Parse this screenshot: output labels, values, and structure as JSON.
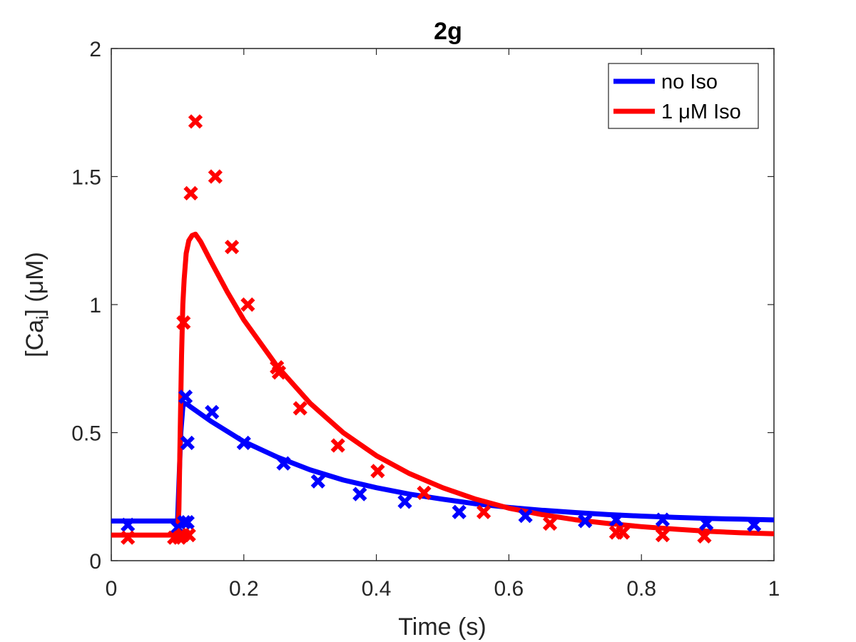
{
  "chart_data": {
    "type": "line",
    "title": "2g",
    "xlabel": "Time (s)",
    "ylabel_prefix": "[Ca",
    "ylabel_sub": "i",
    "ylabel_suffix": "] (μM)",
    "xlim": [
      0,
      1
    ],
    "ylim": [
      0,
      2
    ],
    "xticks": [
      "0",
      "0.2",
      "0.4",
      "0.6",
      "0.8",
      "1"
    ],
    "xtick_values": [
      0,
      0.2,
      0.4,
      0.6,
      0.8,
      1
    ],
    "yticks": [
      "0",
      "0.5",
      "1",
      "1.5",
      "2"
    ],
    "ytick_values": [
      0,
      0.5,
      1,
      1.5,
      2
    ],
    "grid": false,
    "legend_position": "top-right",
    "series": [
      {
        "name": "no Iso",
        "color": "#0000ff",
        "fit": [
          [
            0,
            0.155
          ],
          [
            0.02,
            0.155
          ],
          [
            0.04,
            0.155
          ],
          [
            0.06,
            0.155
          ],
          [
            0.08,
            0.155
          ],
          [
            0.1,
            0.155
          ],
          [
            0.102,
            0.3
          ],
          [
            0.105,
            0.5
          ],
          [
            0.108,
            0.6
          ],
          [
            0.11,
            0.615
          ],
          [
            0.115,
            0.61
          ],
          [
            0.12,
            0.6
          ],
          [
            0.15,
            0.545
          ],
          [
            0.2,
            0.465
          ],
          [
            0.25,
            0.405
          ],
          [
            0.3,
            0.355
          ],
          [
            0.35,
            0.315
          ],
          [
            0.4,
            0.285
          ],
          [
            0.45,
            0.26
          ],
          [
            0.5,
            0.24
          ],
          [
            0.55,
            0.222
          ],
          [
            0.6,
            0.208
          ],
          [
            0.65,
            0.197
          ],
          [
            0.7,
            0.188
          ],
          [
            0.75,
            0.18
          ],
          [
            0.8,
            0.174
          ],
          [
            0.85,
            0.169
          ],
          [
            0.9,
            0.165
          ],
          [
            0.95,
            0.162
          ],
          [
            1.0,
            0.159
          ]
        ],
        "points": [
          [
            0.025,
            0.14
          ],
          [
            0.1,
            0.13
          ],
          [
            0.11,
            0.15
          ],
          [
            0.115,
            0.15
          ],
          [
            0.112,
            0.64
          ],
          [
            0.115,
            0.46
          ],
          [
            0.152,
            0.58
          ],
          [
            0.2,
            0.46
          ],
          [
            0.26,
            0.38
          ],
          [
            0.312,
            0.31
          ],
          [
            0.375,
            0.26
          ],
          [
            0.443,
            0.23
          ],
          [
            0.525,
            0.19
          ],
          [
            0.625,
            0.175
          ],
          [
            0.715,
            0.155
          ],
          [
            0.762,
            0.16
          ],
          [
            0.832,
            0.16
          ],
          [
            0.898,
            0.145
          ],
          [
            0.97,
            0.14
          ]
        ]
      },
      {
        "name": "1 μM Iso",
        "color": "#ff0000",
        "fit": [
          [
            0,
            0.1
          ],
          [
            0.02,
            0.1
          ],
          [
            0.04,
            0.1
          ],
          [
            0.06,
            0.1
          ],
          [
            0.08,
            0.1
          ],
          [
            0.1,
            0.1
          ],
          [
            0.102,
            0.2
          ],
          [
            0.104,
            0.5
          ],
          [
            0.106,
            0.8
          ],
          [
            0.108,
            1.0
          ],
          [
            0.11,
            1.1
          ],
          [
            0.113,
            1.2
          ],
          [
            0.117,
            1.25
          ],
          [
            0.122,
            1.27
          ],
          [
            0.127,
            1.275
          ],
          [
            0.135,
            1.245
          ],
          [
            0.15,
            1.17
          ],
          [
            0.175,
            1.05
          ],
          [
            0.2,
            0.94
          ],
          [
            0.25,
            0.76
          ],
          [
            0.3,
            0.615
          ],
          [
            0.35,
            0.5
          ],
          [
            0.4,
            0.41
          ],
          [
            0.45,
            0.34
          ],
          [
            0.5,
            0.285
          ],
          [
            0.55,
            0.24
          ],
          [
            0.6,
            0.205
          ],
          [
            0.65,
            0.18
          ],
          [
            0.7,
            0.16
          ],
          [
            0.75,
            0.145
          ],
          [
            0.8,
            0.133
          ],
          [
            0.85,
            0.123
          ],
          [
            0.9,
            0.115
          ],
          [
            0.95,
            0.109
          ],
          [
            1.0,
            0.105
          ]
        ],
        "points": [
          [
            0.025,
            0.09
          ],
          [
            0.095,
            0.09
          ],
          [
            0.103,
            0.09
          ],
          [
            0.108,
            0.1
          ],
          [
            0.117,
            0.1
          ],
          [
            0.109,
            0.93
          ],
          [
            0.12,
            1.435
          ],
          [
            0.127,
            1.715
          ],
          [
            0.157,
            1.5
          ],
          [
            0.182,
            1.225
          ],
          [
            0.206,
            1.0
          ],
          [
            0.25,
            0.755
          ],
          [
            0.253,
            0.735
          ],
          [
            0.285,
            0.595
          ],
          [
            0.342,
            0.45
          ],
          [
            0.402,
            0.35
          ],
          [
            0.472,
            0.265
          ],
          [
            0.562,
            0.19
          ],
          [
            0.662,
            0.145
          ],
          [
            0.762,
            0.11
          ],
          [
            0.772,
            0.11
          ],
          [
            0.832,
            0.1
          ],
          [
            0.895,
            0.095
          ]
        ]
      }
    ]
  }
}
